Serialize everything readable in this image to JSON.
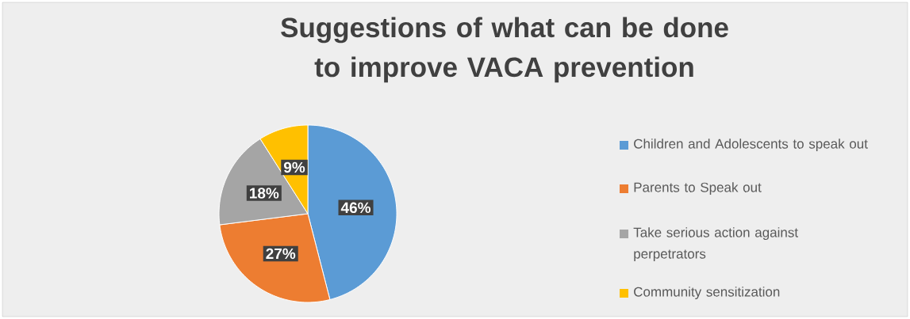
{
  "chart_data": {
    "type": "pie",
    "title": "Suggestions of what can be done to improve VACA prevention",
    "categories": [
      "Children and Adolescents to speak out",
      "Parents to Speak out",
      "Take serious action against perpetrators",
      "Community sensitization"
    ],
    "values": [
      46,
      27,
      18,
      9
    ],
    "value_labels": [
      "46%",
      "27%",
      "18%",
      "9%"
    ],
    "colors": [
      "#5b9bd5",
      "#ed7d31",
      "#a5a5a5",
      "#ffc000"
    ],
    "legend": "right"
  }
}
